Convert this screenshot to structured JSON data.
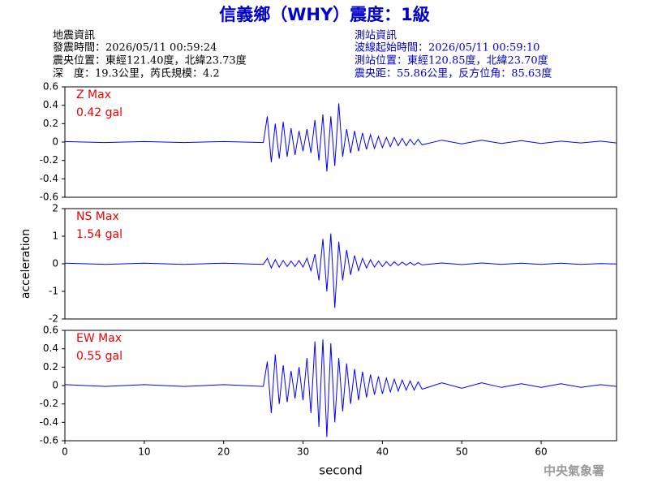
{
  "header": {
    "title": "信義鄉（WHY）震度：1級",
    "left": [
      "地震資訊",
      "發震時間：2026/05/11 00:59:24",
      "震央位置：東經121.40度，北緯23.73度",
      "深　度：19.3公里，芮氏規模：4.2"
    ],
    "right": [
      "測站資訊",
      "波線起始時間：2026/05/11 00:59:10",
      "測站位置：東經120.85度，北緯23.70度",
      "震央距：55.86公里，反方位角：85.63度"
    ]
  },
  "chart_data": [
    {
      "type": "line",
      "x": [
        0,
        5,
        10,
        15,
        20,
        25,
        25.5,
        26,
        26.5,
        27,
        27.5,
        28,
        28.5,
        29,
        29.5,
        30,
        30.5,
        31,
        31.5,
        32,
        32.5,
        33,
        33.5,
        34,
        34.5,
        35,
        35.5,
        36,
        36.5,
        37,
        37.5,
        38,
        38.5,
        39,
        39.5,
        40,
        40.5,
        41,
        41.5,
        42,
        42.5,
        43,
        43.5,
        44,
        44.5,
        45,
        47.5,
        50,
        52.5,
        55,
        57.5,
        60,
        62.5,
        65,
        67.5,
        69.5
      ],
      "series": [
        {
          "name": "Z Max",
          "color": "#0000ff",
          "values": [
            0.005,
            -0.005,
            0.005,
            -0.005,
            0.005,
            -0.005,
            0.28,
            -0.22,
            0.2,
            -0.18,
            0.22,
            -0.16,
            0.15,
            -0.14,
            0.12,
            -0.1,
            0.14,
            -0.12,
            0.24,
            -0.2,
            0.3,
            -0.32,
            0.28,
            -0.26,
            0.42,
            -0.16,
            0.14,
            -0.12,
            0.12,
            -0.1,
            0.1,
            -0.08,
            0.08,
            -0.07,
            0.06,
            -0.06,
            0.05,
            -0.05,
            0.05,
            -0.04,
            0.04,
            -0.04,
            0.03,
            -0.03,
            0.03,
            -0.03,
            0.02,
            -0.02,
            0.02,
            -0.015,
            0.015,
            -0.015,
            0.01,
            -0.01,
            0.01,
            -0.01
          ]
        }
      ],
      "annotation": "0.42 gal",
      "xlim": [
        0,
        69.5
      ],
      "ylim": [
        -0.6,
        0.6
      ],
      "yticks": [
        -0.6,
        -0.4,
        -0.2,
        0,
        0.2,
        0.4,
        0.6
      ]
    },
    {
      "type": "line",
      "x": [
        0,
        5,
        10,
        15,
        20,
        25,
        25.5,
        26,
        26.5,
        27,
        27.5,
        28,
        28.5,
        29,
        29.5,
        30,
        30.5,
        31,
        31.5,
        32,
        32.5,
        33,
        33.5,
        34,
        34.5,
        35,
        35.5,
        36,
        36.5,
        37,
        37.5,
        38,
        38.5,
        39,
        39.5,
        40,
        40.5,
        41,
        41.5,
        42,
        42.5,
        43,
        43.5,
        44,
        44.5,
        45,
        47.5,
        50,
        52.5,
        55,
        57.5,
        60,
        62.5,
        65,
        67.5,
        69.5
      ],
      "series": [
        {
          "name": "NS Max",
          "color": "#0000ff",
          "values": [
            0.02,
            -0.02,
            0.02,
            -0.02,
            0.02,
            -0.02,
            0.2,
            -0.15,
            0.15,
            -0.12,
            0.12,
            -0.1,
            0.1,
            -0.1,
            0.12,
            -0.12,
            0.2,
            -0.25,
            0.35,
            -0.6,
            0.9,
            -1.0,
            1.1,
            -1.6,
            0.8,
            -0.6,
            0.5,
            -0.4,
            0.3,
            -0.25,
            0.2,
            -0.15,
            0.15,
            -0.12,
            0.1,
            -0.1,
            0.08,
            -0.08,
            0.07,
            -0.06,
            0.06,
            -0.05,
            0.05,
            -0.05,
            0.04,
            -0.04,
            0.03,
            -0.03,
            0.03,
            -0.02,
            0.02,
            -0.02,
            0.02,
            -0.02,
            0.01,
            -0.01
          ]
        }
      ],
      "annotation": "1.54 gal",
      "y_label": "acceleration",
      "xlim": [
        0,
        69.5
      ],
      "ylim": [
        -2,
        2
      ],
      "yticks": [
        -2,
        -1,
        0,
        1,
        2
      ]
    },
    {
      "type": "line",
      "x": [
        0,
        5,
        10,
        15,
        20,
        25,
        25.5,
        26,
        26.5,
        27,
        27.5,
        28,
        28.5,
        29,
        29.5,
        30,
        30.5,
        31,
        31.5,
        32,
        32.5,
        33,
        33.5,
        34,
        34.5,
        35,
        35.5,
        36,
        36.5,
        37,
        37.5,
        38,
        38.5,
        39,
        39.5,
        40,
        40.5,
        41,
        41.5,
        42,
        42.5,
        43,
        43.5,
        44,
        44.5,
        45,
        47.5,
        50,
        52.5,
        55,
        57.5,
        60,
        62.5,
        65,
        67.5,
        69.5
      ],
      "series": [
        {
          "name": "EW Max",
          "color": "#0000ff",
          "values": [
            0.01,
            -0.01,
            0.01,
            -0.01,
            0.01,
            -0.01,
            0.26,
            -0.3,
            0.34,
            -0.2,
            0.22,
            -0.18,
            0.16,
            -0.14,
            0.2,
            -0.16,
            0.3,
            -0.3,
            0.48,
            -0.45,
            0.5,
            -0.56,
            0.46,
            -0.4,
            0.3,
            -0.28,
            0.24,
            -0.2,
            0.18,
            -0.16,
            0.15,
            -0.13,
            0.12,
            -0.1,
            0.1,
            -0.09,
            0.08,
            -0.07,
            0.07,
            -0.06,
            0.06,
            -0.05,
            0.05,
            -0.05,
            0.04,
            -0.04,
            0.03,
            -0.03,
            0.03,
            -0.02,
            0.02,
            -0.02,
            0.02,
            -0.02,
            0.01,
            -0.01
          ]
        }
      ],
      "annotation": "0.55 gal",
      "x_label": "second",
      "xlim": [
        0,
        69.5
      ],
      "ylim": [
        -0.6,
        0.6
      ],
      "yticks": [
        -0.6,
        -0.4,
        -0.2,
        0,
        0.2,
        0.4,
        0.6
      ],
      "xticks": [
        0,
        10,
        20,
        30,
        40,
        50,
        60
      ]
    }
  ],
  "footer": "中央氣象署"
}
